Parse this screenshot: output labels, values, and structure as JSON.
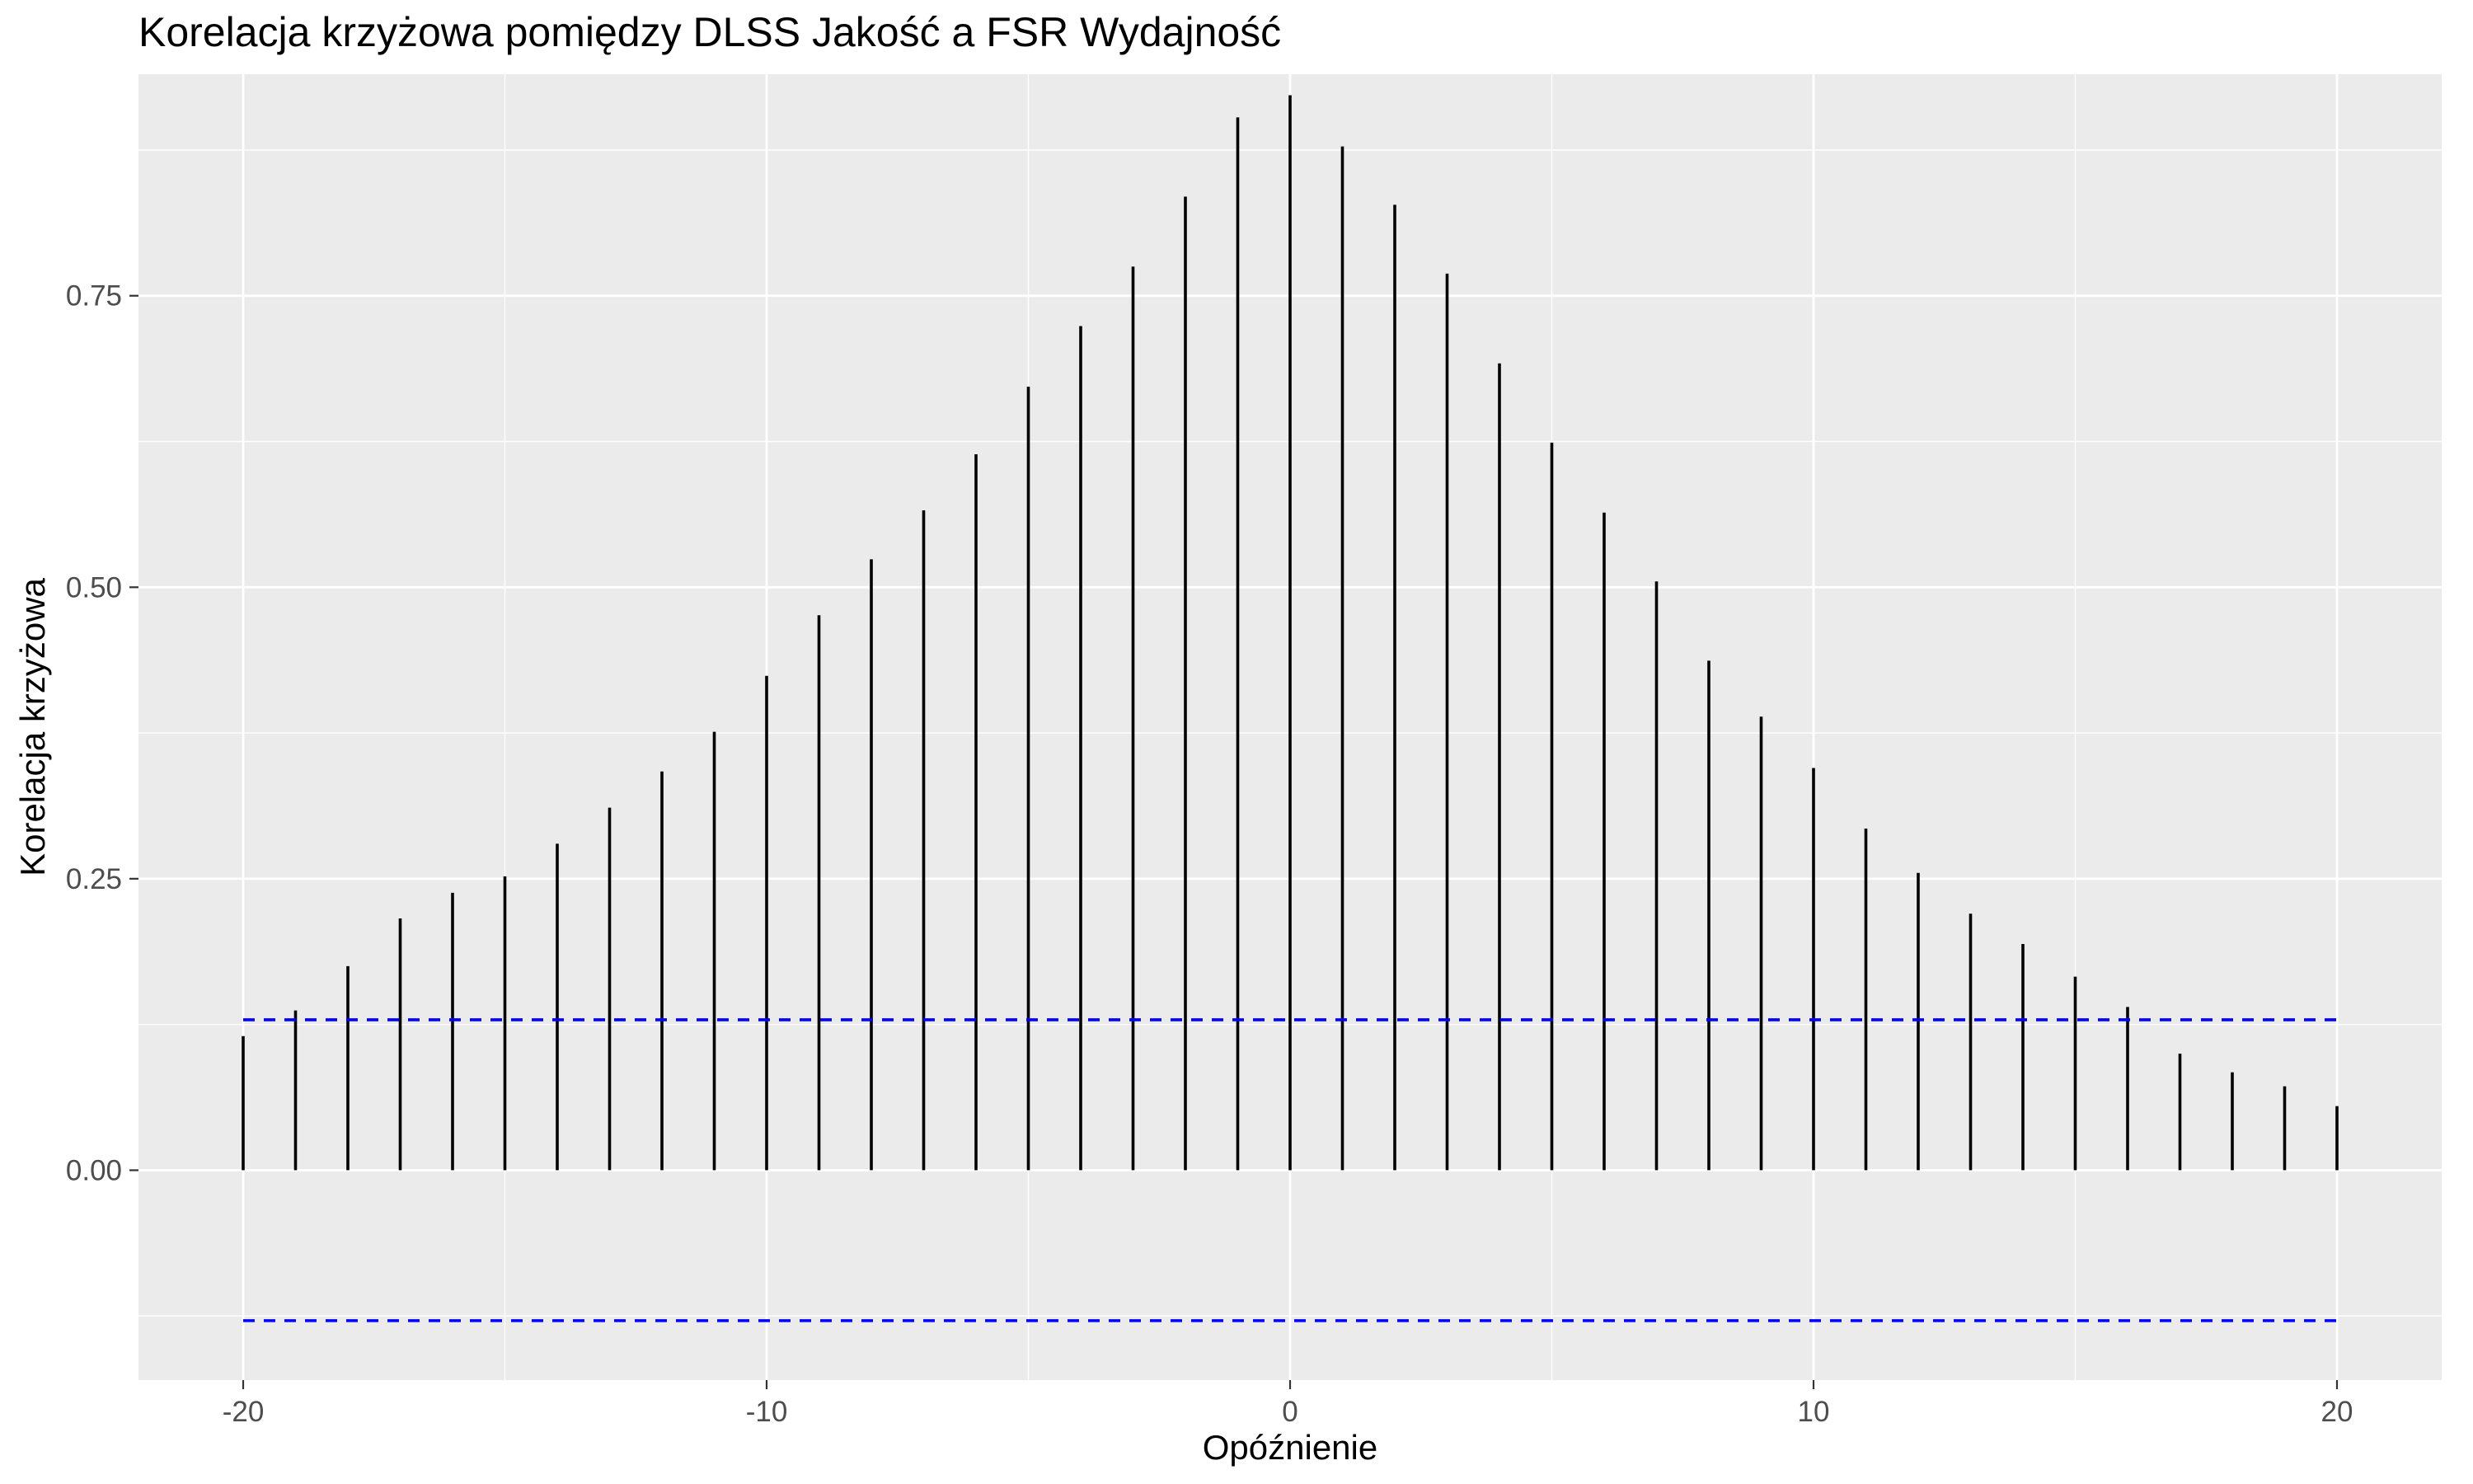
{
  "chart_data": {
    "type": "bar",
    "title": "Korelacja krzyżowa pomiędzy DLSS Jakość a FSR Wydajność",
    "xlabel": "Opóźnienie",
    "ylabel": "Korelacja krzyżowa",
    "xlim": [
      -22,
      22
    ],
    "ylim": [
      -0.18,
      0.94
    ],
    "x_ticks": [
      -20,
      -10,
      0,
      10,
      20
    ],
    "x_tick_labels": [
      "-20",
      "-10",
      "0",
      "10",
      "20"
    ],
    "y_ticks": [
      0,
      0.25,
      0.5,
      0.75
    ],
    "y_tick_labels": [
      "0.00",
      "0.25",
      "0.50",
      "0.75"
    ],
    "grid": true,
    "lags": [
      -20,
      -19,
      -18,
      -17,
      -16,
      -15,
      -14,
      -13,
      -12,
      -11,
      -10,
      -9,
      -8,
      -7,
      -6,
      -5,
      -4,
      -3,
      -2,
      -1,
      0,
      1,
      2,
      3,
      4,
      5,
      6,
      7,
      8,
      9,
      10,
      11,
      12,
      13,
      14,
      15,
      16,
      17,
      18,
      19,
      20
    ],
    "values": [
      0.115,
      0.137,
      0.175,
      0.216,
      0.238,
      0.252,
      0.28,
      0.311,
      0.342,
      0.376,
      0.424,
      0.476,
      0.524,
      0.566,
      0.614,
      0.672,
      0.724,
      0.775,
      0.835,
      0.903,
      0.922,
      0.878,
      0.828,
      0.769,
      0.692,
      0.624,
      0.564,
      0.505,
      0.437,
      0.389,
      0.345,
      0.293,
      0.255,
      0.22,
      0.194,
      0.166,
      0.14,
      0.1,
      0.084,
      0.072,
      0.055
    ],
    "confidence_bounds": [
      0.129,
      -0.129
    ],
    "colors": {
      "panel": "#ebebeb",
      "grid": "#ffffff",
      "bar": "#000000",
      "bounds": "#0000ff",
      "axis_text": "#4d4d4d"
    }
  }
}
